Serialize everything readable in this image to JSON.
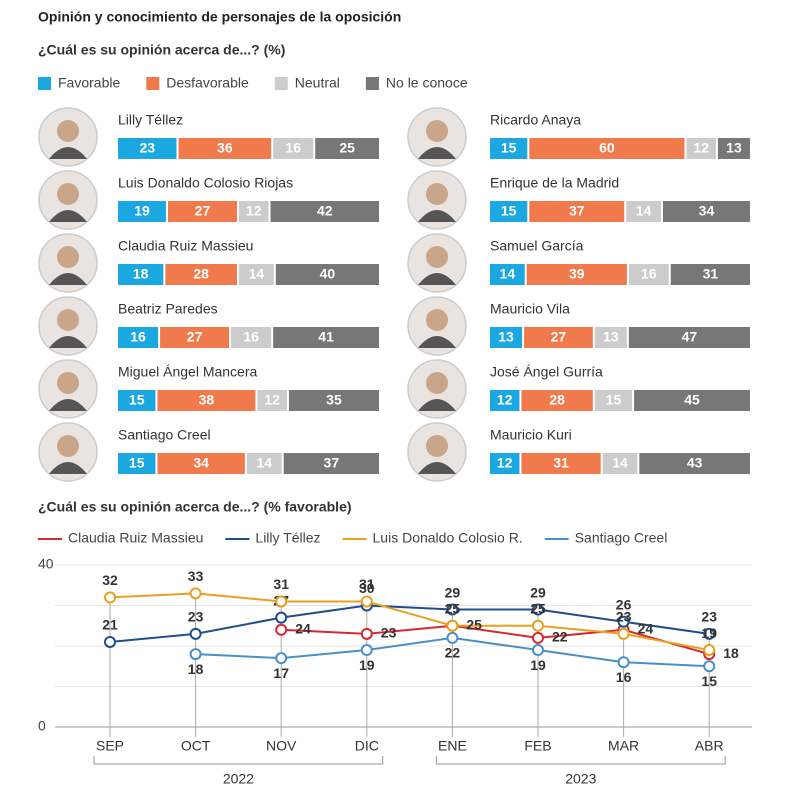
{
  "chart_data": [
    {
      "type": "bar",
      "orientation": "horizontal",
      "stacked": true,
      "title": "Opinión y conocimiento de personajes de la oposición",
      "subtitle": "¿Cuál es su opinión acerca de...? (%)",
      "categories": [
        "Lilly Téllez",
        "Luis Donaldo Colosio Riojas",
        "Claudia Ruiz Massieu",
        "Beatriz Paredes",
        "Miguel Ángel Mancera",
        "Santiago Creel",
        "Ricardo Anaya",
        "Enrique de la Madrid",
        "Samuel García",
        "Mauricio Vila",
        "José Ángel Gurría",
        "Mauricio Kuri"
      ],
      "series": [
        {
          "name": "Favorable",
          "color": "#1ba8e0",
          "values": [
            23,
            19,
            18,
            16,
            15,
            15,
            15,
            15,
            14,
            13,
            12,
            12
          ]
        },
        {
          "name": "Desfavorable",
          "color": "#f07a4c",
          "values": [
            36,
            27,
            28,
            27,
            38,
            34,
            60,
            37,
            39,
            27,
            28,
            31
          ]
        },
        {
          "name": "Neutral",
          "color": "#cccccc",
          "values": [
            16,
            12,
            14,
            16,
            12,
            14,
            12,
            14,
            16,
            13,
            15,
            14
          ]
        },
        {
          "name": "No le conoce",
          "color": "#777777",
          "values": [
            25,
            42,
            40,
            41,
            35,
            37,
            13,
            34,
            31,
            47,
            45,
            43
          ]
        }
      ]
    },
    {
      "type": "line",
      "title": "¿Cuál es su opinión acerca de...? (% favorable)",
      "categories": [
        "SEP",
        "OCT",
        "NOV",
        "DIC",
        "ENE",
        "FEB",
        "MAR",
        "ABR"
      ],
      "x_groups": [
        {
          "label": "2022",
          "from": "SEP",
          "to": "DIC"
        },
        {
          "label": "2023",
          "from": "ENE",
          "to": "ABR"
        }
      ],
      "ylim": [
        0,
        40
      ],
      "yticks": [
        0,
        40
      ],
      "minor_grid": [
        10,
        20,
        30
      ],
      "series": [
        {
          "name": "Claudia Ruiz Massieu",
          "color": "#d7282f",
          "values": [
            null,
            null,
            24,
            23,
            25,
            22,
            24,
            18
          ]
        },
        {
          "name": "Lilly Téllez",
          "color": "#1f4e8c",
          "values": [
            21,
            23,
            27,
            30,
            29,
            29,
            26,
            23
          ]
        },
        {
          "name": "Luis Donaldo Colosio R.",
          "color": "#e8a020",
          "values": [
            32,
            33,
            31,
            31,
            25,
            25,
            23,
            19
          ]
        },
        {
          "name": "Santiago Creel",
          "color": "#4a90c8",
          "values": [
            null,
            18,
            17,
            19,
            22,
            19,
            16,
            15
          ]
        }
      ]
    }
  ]
}
